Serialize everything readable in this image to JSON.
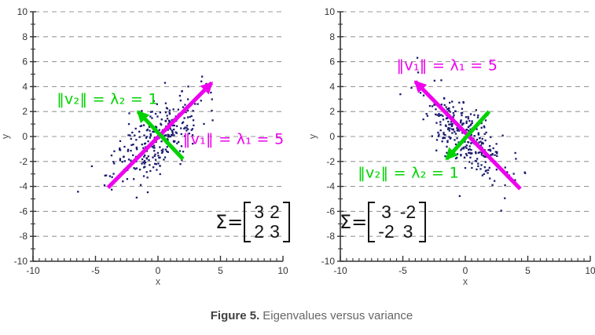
{
  "figure_caption": {
    "label": "Figure 5.",
    "text": "Eigenvalues versus variance"
  },
  "palette": {
    "lambda1_color": "#ee00ee",
    "lambda2_color": "#00d300",
    "point_color": "#1b1b6e",
    "grid_color": "#999999",
    "axis_color": "#333333",
    "tick_label_color": "#333333",
    "axis_title_color": "#555555",
    "matrix_color": "#141414",
    "caption_label_color": "#3f3f3f",
    "caption_text_color": "#666666"
  },
  "axes": {
    "x_label": "x",
    "y_label": "y",
    "x_range": [
      -10,
      10
    ],
    "y_range": [
      -10,
      10
    ],
    "x_major_ticks": [
      -10,
      -5,
      0,
      5,
      10
    ],
    "y_major_ticks": [
      -10,
      -8,
      -6,
      -4,
      -2,
      0,
      2,
      4,
      6,
      8,
      10
    ],
    "x_minor_step": 0.5,
    "y_minor_step": 1,
    "grid": "dashed-horizontal"
  },
  "chart_data": [
    {
      "type": "scatter",
      "position": "left",
      "title": "",
      "xlabel": "x",
      "ylabel": "y",
      "xlim": [
        -10,
        10
      ],
      "ylim": [
        -10,
        10
      ],
      "n_points": 300,
      "mean": [
        0,
        0
      ],
      "covariance": [
        [
          3,
          2
        ],
        [
          2,
          3
        ]
      ],
      "eigenvalues": [
        5,
        1
      ],
      "eigenvectors": [
        [
          0.7071,
          0.7071
        ],
        [
          -0.7071,
          0.7071
        ]
      ],
      "arrows": [
        {
          "name": "v1-arrow",
          "color": "#ee00ee",
          "from": [
            -4.0,
            -4.1
          ],
          "to": [
            4.3,
            4.3
          ]
        },
        {
          "name": "v2-arrow",
          "color": "#00d300",
          "from": [
            2.0,
            -1.8
          ],
          "to": [
            -1.6,
            2.0
          ]
        }
      ],
      "annotations": [
        {
          "name": "lambda2-label",
          "text": "‖v₂‖ = λ₂ = 1",
          "color": "#00d300",
          "pos": [
            -8.1,
            2.6
          ]
        },
        {
          "name": "lambda1-label",
          "text": "‖v₁‖ = λ₁ = 5",
          "color": "#ee00ee",
          "pos": [
            2.0,
            -0.6
          ]
        }
      ],
      "matrix": {
        "label": "Σ=",
        "rows": [
          [
            "3",
            "2"
          ],
          [
            "2",
            "3"
          ]
        ]
      }
    },
    {
      "type": "scatter",
      "position": "right",
      "title": "",
      "xlabel": "x",
      "ylabel": "y",
      "xlim": [
        -10,
        10
      ],
      "ylim": [
        -10,
        10
      ],
      "n_points": 300,
      "mean": [
        0,
        0
      ],
      "covariance": [
        [
          3,
          -2
        ],
        [
          -2,
          3
        ]
      ],
      "eigenvalues": [
        5,
        1
      ],
      "eigenvectors": [
        [
          0.7071,
          -0.7071
        ],
        [
          0.7071,
          0.7071
        ]
      ],
      "arrows": [
        {
          "name": "v1-arrow",
          "color": "#ee00ee",
          "from": [
            4.4,
            -4.2
          ],
          "to": [
            -4.0,
            4.4
          ]
        },
        {
          "name": "v2-arrow",
          "color": "#00d300",
          "from": [
            1.9,
            2.0
          ],
          "to": [
            -1.5,
            -1.8
          ]
        }
      ],
      "annotations": [
        {
          "name": "lambda1-label",
          "text": "‖v₁‖ = λ₁ = 5",
          "color": "#ee00ee",
          "pos": [
            -5.5,
            5.3
          ]
        },
        {
          "name": "lambda2-label",
          "text": "‖v₂‖ = λ₂ = 1",
          "color": "#00d300",
          "pos": [
            -8.6,
            -3.3
          ]
        }
      ],
      "matrix": {
        "label": "Σ=",
        "rows": [
          [
            "3",
            "-2"
          ],
          [
            "-2",
            "3"
          ]
        ]
      }
    }
  ]
}
